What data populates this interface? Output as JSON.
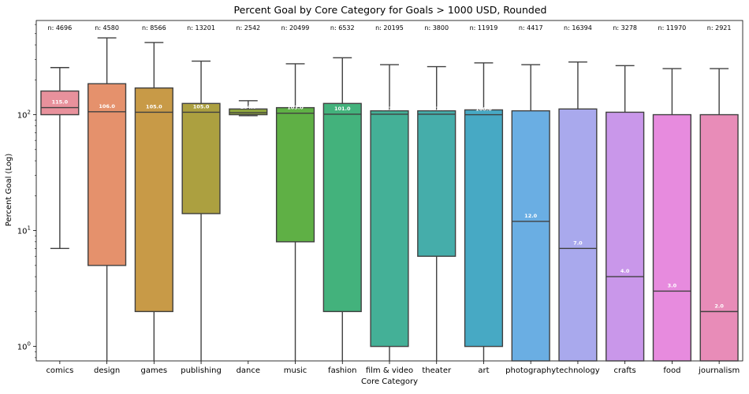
{
  "chart_data": {
    "type": "box",
    "title": "Percent Goal by Core Category for Goals > 1000 USD, Rounded",
    "xlabel": "Core Category",
    "ylabel": "Percent Goal (Log)",
    "yscale": "log",
    "ylim": [
      0.75,
      650
    ],
    "yticks": [
      {
        "value": 1,
        "base": "10",
        "exp": "0"
      },
      {
        "value": 10,
        "base": "10",
        "exp": "1"
      },
      {
        "value": 100,
        "base": "10",
        "exp": "2"
      }
    ],
    "grid": false,
    "legend": "none",
    "categories": [
      "comics",
      "design",
      "games",
      "publishing",
      "dance",
      "music",
      "fashion",
      "film & video",
      "theater",
      "art",
      "photography",
      "technology",
      "crafts",
      "food",
      "journalism"
    ],
    "counts": [
      "n: 4696",
      "n: 4580",
      "n: 8566",
      "n: 13201",
      "n: 2542",
      "n: 20499",
      "n: 6532",
      "n: 20195",
      "n: 3800",
      "n: 11919",
      "n: 4417",
      "n: 16394",
      "n: 3278",
      "n: 11970",
      "n: 2921"
    ],
    "median_labels": [
      "115.0",
      "106.0",
      "105.0",
      "105.0",
      "104.0",
      "103.0",
      "101.0",
      "101.0",
      "101.0",
      "100.0",
      "12.0",
      "7.0",
      "4.0",
      "3.0",
      "2.0"
    ],
    "boxes": [
      {
        "min": 7,
        "q1": 100,
        "median": 115,
        "q3": 160,
        "max": 255,
        "color": "#e8919c"
      },
      {
        "min": 0.7,
        "q1": 5,
        "median": 106,
        "q3": 185,
        "max": 460,
        "color": "#e5916c"
      },
      {
        "min": 0.7,
        "q1": 2,
        "median": 105,
        "q3": 170,
        "max": 420,
        "color": "#c89a47"
      },
      {
        "min": 0.7,
        "q1": 14,
        "median": 105,
        "q3": 125,
        "max": 290,
        "color": "#aca040"
      },
      {
        "min": 98,
        "q1": 100,
        "median": 104,
        "q3": 112,
        "max": 132,
        "color": "#8ea53e"
      },
      {
        "min": 0.7,
        "q1": 8,
        "median": 103,
        "q3": 115,
        "max": 275,
        "color": "#5fb045"
      },
      {
        "min": 0.7,
        "q1": 2,
        "median": 101,
        "q3": 125,
        "max": 310,
        "color": "#43b27c"
      },
      {
        "min": 0.7,
        "q1": 1,
        "median": 101,
        "q3": 108,
        "max": 270,
        "color": "#44b097"
      },
      {
        "min": 0.7,
        "q1": 6,
        "median": 101,
        "q3": 108,
        "max": 260,
        "color": "#45adaa"
      },
      {
        "min": 0.7,
        "q1": 1,
        "median": 100,
        "q3": 110,
        "max": 280,
        "color": "#47a9c4"
      },
      {
        "min": 0.7,
        "q1": 0.7,
        "median": 12,
        "q3": 108,
        "max": 270,
        "color": "#6aaee3"
      },
      {
        "min": 0.7,
        "q1": 0.7,
        "median": 7,
        "q3": 112,
        "max": 285,
        "color": "#a9a9ed"
      },
      {
        "min": 0.7,
        "q1": 0.7,
        "median": 4,
        "q3": 105,
        "max": 265,
        "color": "#c997ea"
      },
      {
        "min": 0.7,
        "q1": 0.7,
        "median": 3,
        "q3": 100,
        "max": 250,
        "color": "#e78bde"
      },
      {
        "min": 0.7,
        "q1": 0.7,
        "median": 2,
        "q3": 100,
        "max": 250,
        "color": "#e88cb8"
      }
    ]
  }
}
